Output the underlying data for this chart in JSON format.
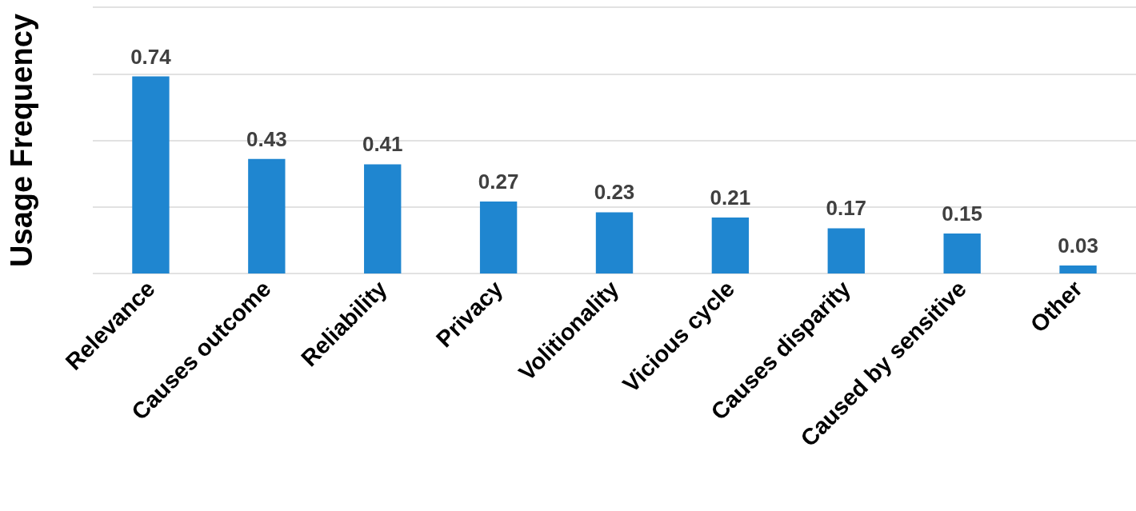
{
  "chart_data": {
    "type": "bar",
    "ylabel": "Usage Frequency",
    "categories": [
      "Relevance",
      "Causes outcome",
      "Reliability",
      "Privacy",
      "Volitionality",
      "Vicious cycle",
      "Causes disparity",
      "Caused by sensitive",
      "Other"
    ],
    "values": [
      0.74,
      0.43,
      0.41,
      0.27,
      0.23,
      0.21,
      0.17,
      0.15,
      0.03
    ],
    "color": "#1f86d0",
    "ylim": [
      0,
      1
    ],
    "yticks": [
      {
        "value": 0,
        "label": null
      },
      {
        "value": 0.25,
        "label": null
      },
      {
        "value": 0.5,
        "label": null
      },
      {
        "value": 0.75,
        "label": null
      },
      {
        "value": 1,
        "label": null
      }
    ],
    "grid": "y",
    "tick_labels": "x",
    "data_labels": true
  }
}
